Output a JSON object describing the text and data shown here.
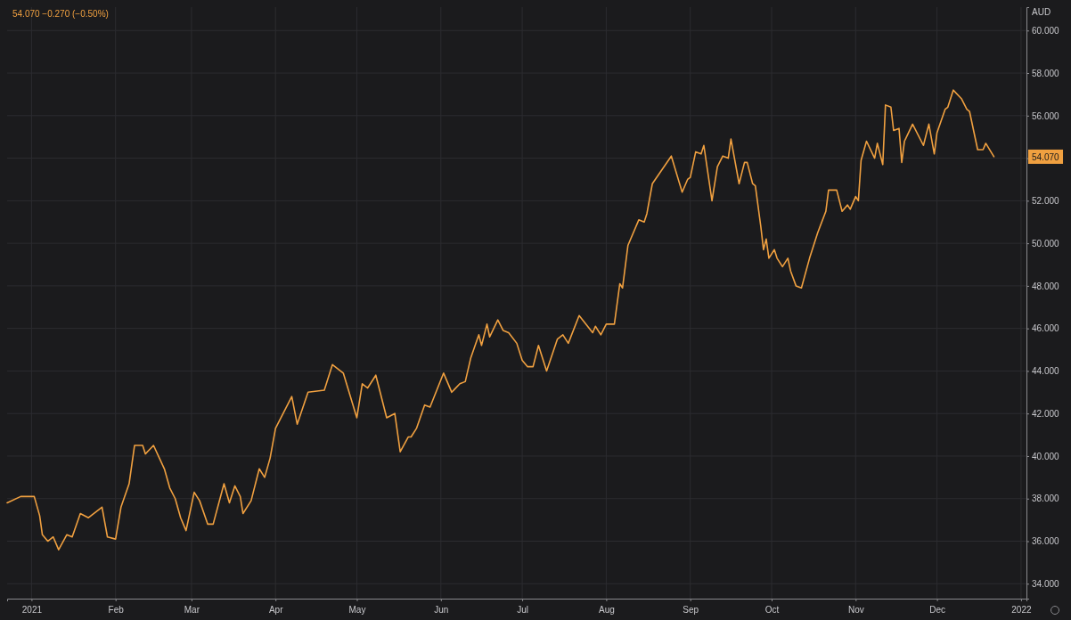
{
  "chart_data": {
    "type": "line",
    "title": "54.070 −0.270 (−0.50%)",
    "ylabel": "AUD",
    "x": [
      "2020-12-23",
      "2020-12-28",
      "2021-01-02",
      "2021-01-04",
      "2021-01-05",
      "2021-01-07",
      "2021-01-09",
      "2021-01-11",
      "2021-01-14",
      "2021-01-16",
      "2021-01-19",
      "2021-01-22",
      "2021-01-27",
      "2021-01-29",
      "2021-02-01",
      "2021-02-03",
      "2021-02-06",
      "2021-02-08",
      "2021-02-11",
      "2021-02-12",
      "2021-02-15",
      "2021-02-19",
      "2021-02-21",
      "2021-02-23",
      "2021-02-25",
      "2021-02-27",
      "2021-03-02",
      "2021-03-04",
      "2021-03-07",
      "2021-03-09",
      "2021-03-13",
      "2021-03-15",
      "2021-03-17",
      "2021-03-19",
      "2021-03-20",
      "2021-03-23",
      "2021-03-26",
      "2021-03-28",
      "2021-03-30",
      "2021-04-01",
      "2021-04-07",
      "2021-04-09",
      "2021-04-13",
      "2021-04-19",
      "2021-04-22",
      "2021-04-26",
      "2021-05-01",
      "2021-05-03",
      "2021-05-05",
      "2021-05-08",
      "2021-05-12",
      "2021-05-15",
      "2021-05-17",
      "2021-05-20",
      "2021-05-21",
      "2021-05-23",
      "2021-05-26",
      "2021-05-28",
      "2021-06-02",
      "2021-06-05",
      "2021-06-08",
      "2021-06-10",
      "2021-06-12",
      "2021-06-15",
      "2021-06-16",
      "2021-06-18",
      "2021-06-19",
      "2021-06-22",
      "2021-06-24",
      "2021-06-26",
      "2021-06-29",
      "2021-07-01",
      "2021-07-03",
      "2021-07-05",
      "2021-07-07",
      "2021-07-10",
      "2021-07-14",
      "2021-07-16",
      "2021-07-18",
      "2021-07-22",
      "2021-07-27",
      "2021-07-28",
      "2021-07-30",
      "2021-08-01",
      "2021-08-04",
      "2021-08-06",
      "2021-08-07",
      "2021-08-09",
      "2021-08-13",
      "2021-08-15",
      "2021-08-16",
      "2021-08-18",
      "2021-08-25",
      "2021-08-29",
      "2021-08-31",
      "2021-09-01",
      "2021-09-03",
      "2021-09-05",
      "2021-09-06",
      "2021-09-09",
      "2021-09-11",
      "2021-09-13",
      "2021-09-15",
      "2021-09-16",
      "2021-09-19",
      "2021-09-21",
      "2021-09-22",
      "2021-09-24",
      "2021-09-25",
      "2021-09-27",
      "2021-09-28",
      "2021-09-29",
      "2021-09-30",
      "2021-10-02",
      "2021-10-03",
      "2021-10-05",
      "2021-10-07",
      "2021-10-08",
      "2021-10-10",
      "2021-10-12",
      "2021-10-15",
      "2021-10-18",
      "2021-10-21",
      "2021-10-22",
      "2021-10-25",
      "2021-10-27",
      "2021-10-29",
      "2021-10-30",
      "2021-11-01",
      "2021-11-02",
      "2021-11-03",
      "2021-11-05",
      "2021-11-08",
      "2021-11-09",
      "2021-11-11",
      "2021-11-12",
      "2021-11-14",
      "2021-11-15",
      "2021-11-17",
      "2021-11-18",
      "2021-11-19",
      "2021-11-22",
      "2021-11-26",
      "2021-11-28",
      "2021-11-30",
      "2021-12-01",
      "2021-12-04",
      "2021-12-05",
      "2021-12-07",
      "2021-12-10",
      "2021-12-12",
      "2021-12-13",
      "2021-12-16",
      "2021-12-18",
      "2021-12-19",
      "2021-12-22"
    ],
    "series": [
      {
        "color": "#f0a040",
        "values": [
          37.8,
          38.1,
          38.1,
          37.2,
          36.3,
          36.0,
          36.2,
          35.6,
          36.3,
          36.2,
          37.3,
          37.1,
          37.6,
          36.2,
          36.1,
          37.6,
          38.7,
          40.5,
          40.5,
          40.1,
          40.5,
          39.4,
          38.5,
          38.0,
          37.1,
          36.5,
          38.3,
          37.9,
          36.8,
          36.8,
          38.7,
          37.8,
          38.6,
          38.1,
          37.3,
          37.9,
          39.4,
          39.0,
          39.9,
          41.3,
          42.8,
          41.5,
          43.0,
          43.1,
          44.3,
          43.9,
          41.8,
          43.4,
          43.2,
          43.8,
          41.8,
          42.0,
          40.2,
          40.9,
          40.9,
          41.3,
          42.4,
          42.3,
          43.9,
          43.0,
          43.4,
          43.5,
          44.6,
          45.7,
          45.2,
          46.2,
          45.6,
          46.4,
          45.9,
          45.8,
          45.3,
          44.5,
          44.2,
          44.2,
          45.2,
          44.0,
          45.5,
          45.7,
          45.3,
          46.6,
          45.8,
          46.1,
          45.7,
          46.2,
          46.2,
          48.1,
          47.9,
          49.9,
          51.1,
          51.0,
          51.4,
          52.8,
          54.1,
          52.4,
          53.0,
          53.1,
          54.3,
          54.2,
          54.6,
          52.0,
          53.6,
          54.1,
          54.0,
          54.9,
          52.8,
          53.8,
          53.8,
          52.8,
          52.7,
          50.8,
          49.7,
          50.2,
          49.3,
          49.7,
          49.3,
          48.9,
          49.3,
          48.7,
          48.0,
          47.9,
          49.3,
          50.5,
          51.5,
          52.5,
          52.5,
          51.5,
          51.8,
          51.6,
          52.2,
          52.0,
          53.9,
          54.8,
          54.0,
          54.7,
          53.7,
          56.5,
          56.4,
          55.3,
          55.4,
          53.8,
          54.8,
          55.6,
          54.6,
          55.6,
          54.2,
          55.2,
          56.3,
          56.4,
          57.2,
          56.8,
          56.3,
          56.2,
          54.4,
          54.4,
          54.7,
          54.07
        ]
      }
    ],
    "xlim": [
      "2020-12-23",
      "2022-01-03"
    ],
    "xticks": [
      {
        "value": "2021-01-01",
        "label": "2021"
      },
      {
        "value": "2021-02-01",
        "label": "Feb"
      },
      {
        "value": "2021-03-01",
        "label": "Mar"
      },
      {
        "value": "2021-04-01",
        "label": "Apr"
      },
      {
        "value": "2021-05-01",
        "label": "May"
      },
      {
        "value": "2021-06-01",
        "label": "Jun"
      },
      {
        "value": "2021-07-01",
        "label": "Jul"
      },
      {
        "value": "2021-08-01",
        "label": "Aug"
      },
      {
        "value": "2021-09-01",
        "label": "Sep"
      },
      {
        "value": "2021-10-01",
        "label": "Oct"
      },
      {
        "value": "2021-11-01",
        "label": "Nov"
      },
      {
        "value": "2021-12-01",
        "label": "Dec"
      },
      {
        "value": "2022-01-01",
        "label": "2022"
      }
    ],
    "ylim": [
      33.3,
      61.1
    ],
    "yticks": [
      {
        "value": 34,
        "label": "34.000"
      },
      {
        "value": 36,
        "label": "36.000"
      },
      {
        "value": 38,
        "label": "38.000"
      },
      {
        "value": 40,
        "label": "40.000"
      },
      {
        "value": 42,
        "label": "42.000"
      },
      {
        "value": 44,
        "label": "44.000"
      },
      {
        "value": 46,
        "label": "46.000"
      },
      {
        "value": 48,
        "label": "48.000"
      },
      {
        "value": 50,
        "label": "50.000"
      },
      {
        "value": 52,
        "label": "52.000"
      },
      {
        "value": 54,
        "label": null
      },
      {
        "value": 56,
        "label": "56.000"
      },
      {
        "value": 58,
        "label": "58.000"
      },
      {
        "value": 60,
        "label": "60.000"
      }
    ],
    "annotations": [
      {
        "text": "54.070",
        "y": 54.07
      }
    ],
    "grid": true,
    "line_style": "solid",
    "marker": "none"
  }
}
